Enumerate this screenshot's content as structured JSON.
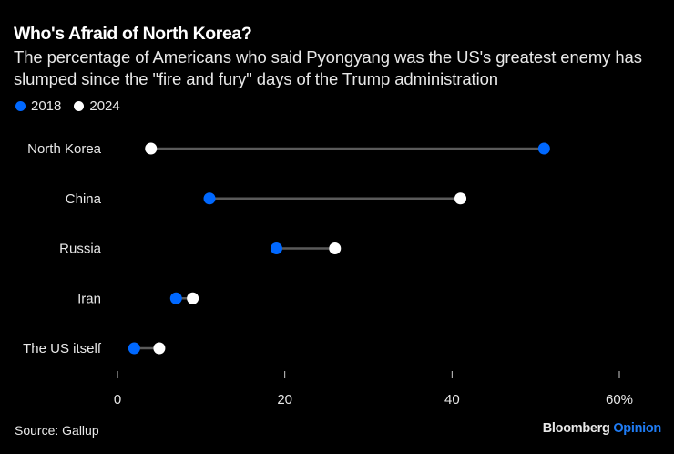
{
  "header": {
    "title": "Who's Afraid of North Korea?",
    "subtitle": "The percentage of Americans who said Pyongyang was the US's greatest enemy has slumped since the \"fire and fury\" days of the Trump administration"
  },
  "legend": [
    {
      "label": "2018",
      "color": "#0068ff"
    },
    {
      "label": "2024",
      "color": "#ffffff"
    }
  ],
  "footer": {
    "source": "Source: Gallup",
    "brand_primary": "Bloomberg",
    "brand_secondary": "Opinion"
  },
  "colors": {
    "background": "#000000",
    "series_2018": "#0068ff",
    "series_2024": "#ffffff",
    "connector": "#5a5a5a",
    "brand_accent": "#1f7cf5"
  },
  "chart_data": {
    "type": "dumbbell",
    "title": "Who's Afraid of North Korea?",
    "subtitle": "The percentage of Americans who said Pyongyang was the US's greatest enemy has slumped since the \"fire and fury\" days of the Trump administration",
    "categories": [
      "North Korea",
      "China",
      "Russia",
      "Iran",
      "The US itself"
    ],
    "series": [
      {
        "name": "2018",
        "values": [
          51,
          11,
          19,
          7,
          2
        ]
      },
      {
        "name": "2024",
        "values": [
          4,
          41,
          26,
          9,
          5
        ]
      }
    ],
    "xlim": [
      0,
      60
    ],
    "xticks": [
      0,
      20,
      40,
      60
    ],
    "xtick_labels": [
      "0",
      "20",
      "40",
      "60%"
    ],
    "xlabel": "",
    "ylabel": "",
    "grid": false,
    "legend_position": "top-left"
  }
}
